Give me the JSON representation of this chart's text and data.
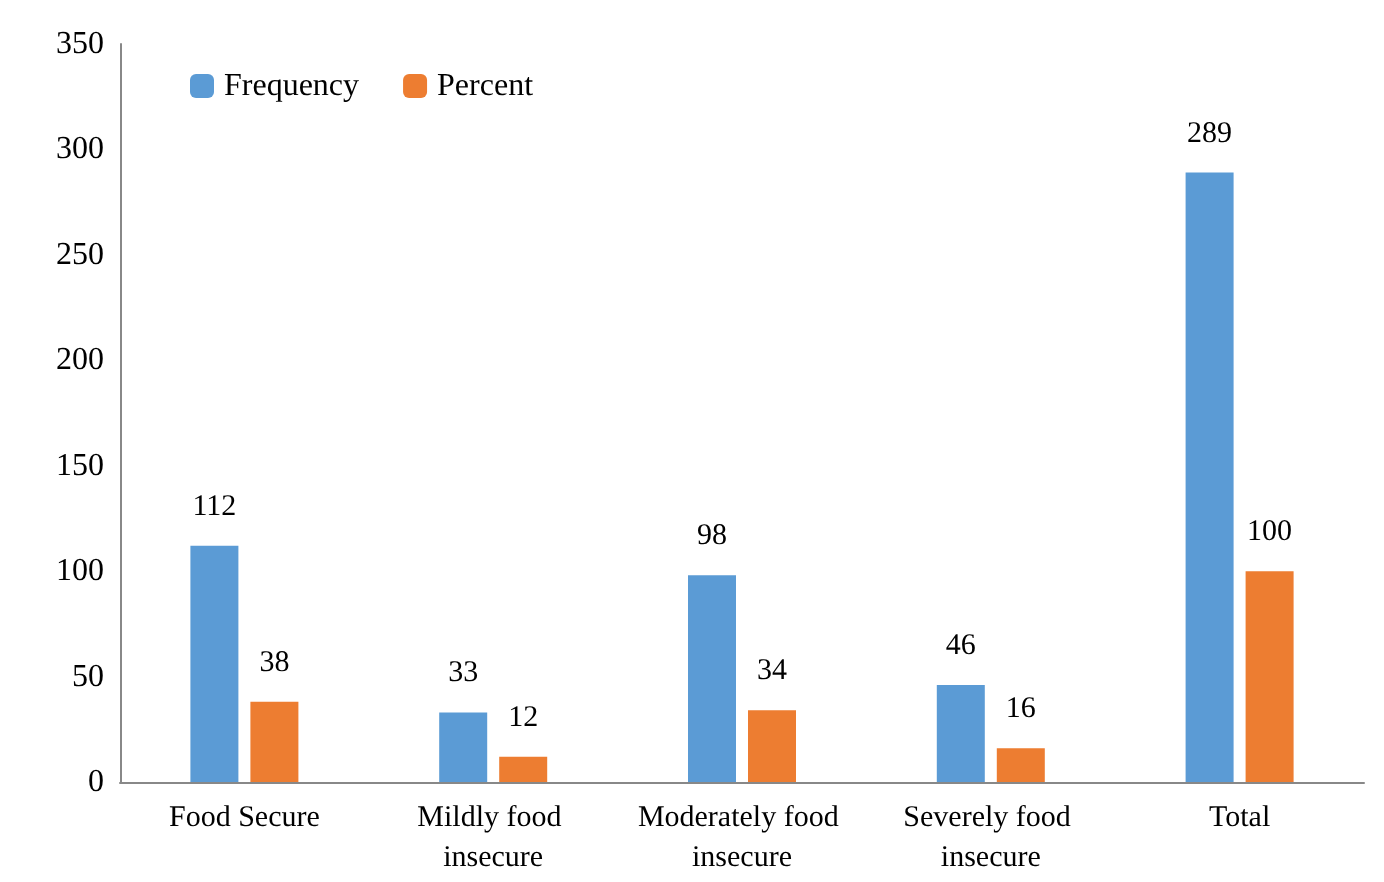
{
  "chart_data": {
    "type": "bar",
    "categories": [
      "Food Secure",
      "Mildly food insecure",
      "Moderately food insecure",
      "Severely food insecure",
      "Total"
    ],
    "series": [
      {
        "name": "Frequency",
        "color": "#5b9bd5",
        "values": [
          112,
          33,
          98,
          46,
          289
        ]
      },
      {
        "name": "Percent",
        "color": "#ed7d31",
        "values": [
          38,
          12,
          34,
          16,
          100
        ]
      }
    ],
    "ylim": [
      0,
      350
    ],
    "yticks": [
      0,
      50,
      100,
      150,
      200,
      250,
      300,
      350
    ],
    "grid": false,
    "legend": "top left",
    "data_labels": true
  }
}
